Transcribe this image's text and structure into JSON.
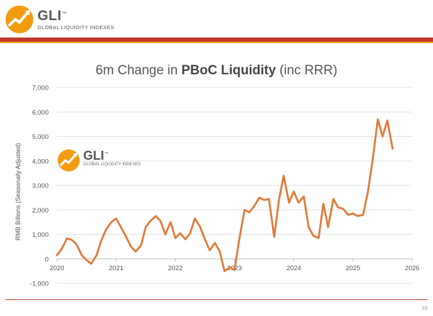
{
  "logo": {
    "name": "GLI",
    "tm": "™",
    "subtitle": "GLOBAL LIQUIDITY INDEXES"
  },
  "watermark": {
    "name": "GLI",
    "tm": "™",
    "subtitle": "GLOBAL LIQUIDITY INDEXES"
  },
  "page_number": "23",
  "colors": {
    "line": "#E07B39",
    "band": "#C0392B",
    "accent": "#F39C12"
  },
  "chart_data": {
    "type": "line",
    "title_pre": "6m Change in ",
    "title_bold": "PBoC Liquidity",
    "title_post": " (inc RRR)",
    "ylabel": "RMB Billions (Seasonally Adjusted)",
    "xlabel": "",
    "ylim": [
      -1000,
      7000
    ],
    "xlim": [
      2020,
      2026
    ],
    "y_ticks": [
      "7,000",
      "6,000",
      "5,000",
      "4,000",
      "3,000",
      "2,000",
      "1,000",
      "0",
      "-1,000"
    ],
    "y_tick_values": [
      7000,
      6000,
      5000,
      4000,
      3000,
      2000,
      1000,
      0,
      -1000
    ],
    "x_ticks": [
      "2020",
      "2021",
      "2022",
      "2023",
      "2024",
      "2025",
      "2026"
    ],
    "x_tick_values": [
      2020,
      2021,
      2022,
      2023,
      2024,
      2025,
      2026
    ],
    "grid": true,
    "series": [
      {
        "x": [
          2020.0,
          2020.08,
          2020.17,
          2020.25,
          2020.33,
          2020.42,
          2020.5,
          2020.58,
          2020.67,
          2020.75,
          2020.83,
          2020.92,
          2021.0,
          2021.08,
          2021.17,
          2021.25,
          2021.33,
          2021.42,
          2021.5,
          2021.58,
          2021.67,
          2021.75,
          2021.83,
          2021.92,
          2022.0,
          2022.08,
          2022.17,
          2022.25,
          2022.33,
          2022.42,
          2022.5,
          2022.58,
          2022.67,
          2022.75,
          2022.83,
          2022.92,
          2023.0,
          2023.08,
          2023.17,
          2023.25,
          2023.33,
          2023.42,
          2023.5,
          2023.58,
          2023.67,
          2023.75,
          2023.83,
          2023.92,
          2024.0,
          2024.08,
          2024.17,
          2024.25,
          2024.33,
          2024.42,
          2024.5,
          2024.58,
          2024.67,
          2024.75,
          2024.83,
          2024.92,
          2025.0,
          2025.08,
          2025.17,
          2025.25,
          2025.33,
          2025.42,
          2025.5,
          2025.58,
          2025.67
        ],
        "values": [
          150,
          400,
          830,
          780,
          600,
          150,
          -50,
          -200,
          150,
          750,
          1200,
          1500,
          1650,
          1300,
          900,
          500,
          300,
          550,
          1300,
          1550,
          1750,
          1550,
          1000,
          1500,
          850,
          1050,
          800,
          1050,
          1650,
          1300,
          800,
          350,
          650,
          300,
          -500,
          -350,
          -450,
          800,
          2000,
          1900,
          2150,
          2500,
          2400,
          2450,
          900,
          2400,
          3400,
          2300,
          2750,
          2300,
          2550,
          1300,
          950,
          850,
          2250,
          1300,
          2450,
          2100,
          2050,
          1800,
          1850,
          1750,
          1800,
          2700,
          4000,
          5700,
          5000,
          5650,
          4500
        ]
      }
    ]
  }
}
